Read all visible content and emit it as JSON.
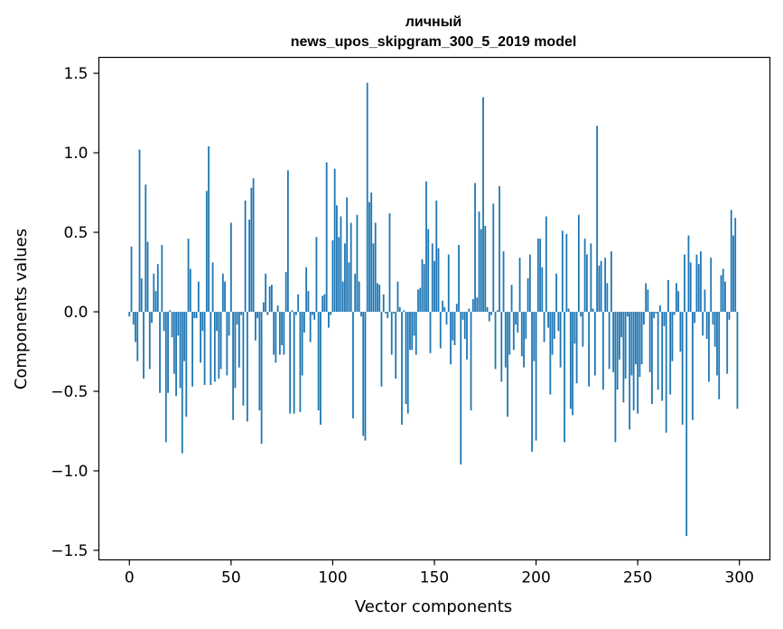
{
  "chart_data": {
    "type": "bar",
    "title_line1": "личный",
    "title_line2": "news_upos_skipgram_300_5_2019 model",
    "xlabel": "Vector components",
    "ylabel": "Components values",
    "xlim": [
      -15,
      315
    ],
    "ylim": [
      -1.56,
      1.6
    ],
    "xticks": [
      0,
      50,
      100,
      150,
      200,
      250,
      300
    ],
    "yticks": [
      -1.5,
      -1.0,
      -0.5,
      0.0,
      0.5,
      1.0,
      1.5
    ],
    "ytick_labels": [
      "−1.5",
      "−1.0",
      "−0.5",
      "0.0",
      "0.5",
      "1.0",
      "1.5"
    ],
    "bar_color": "#1f77b4",
    "values": [
      -0.03,
      0.41,
      -0.08,
      -0.19,
      -0.31,
      1.02,
      0.21,
      -0.42,
      0.8,
      0.44,
      -0.36,
      -0.07,
      0.24,
      0.13,
      0.3,
      -0.51,
      0.42,
      -0.12,
      -0.82,
      -0.51,
      0.01,
      -0.16,
      -0.39,
      -0.53,
      -0.15,
      -0.48,
      -0.89,
      -0.31,
      -0.66,
      0.46,
      0.27,
      -0.47,
      -0.04,
      -0.04,
      0.19,
      -0.32,
      -0.12,
      -0.46,
      0.76,
      1.04,
      -0.46,
      0.31,
      -0.44,
      -0.12,
      -0.42,
      -0.36,
      0.24,
      0.19,
      -0.4,
      -0.15,
      0.56,
      -0.68,
      -0.48,
      -0.08,
      -0.35,
      -0.02,
      -0.59,
      0.7,
      -0.69,
      0.58,
      0.78,
      0.84,
      -0.18,
      -0.04,
      -0.62,
      -0.83,
      0.06,
      0.24,
      -0.02,
      0.16,
      0.17,
      -0.27,
      -0.32,
      0.04,
      -0.27,
      -0.21,
      -0.27,
      0.25,
      0.89,
      -0.64,
      0.01,
      -0.64,
      -0.02,
      0.11,
      -0.63,
      -0.4,
      -0.13,
      0.28,
      0.13,
      -0.19,
      -0.02,
      -0.05,
      0.47,
      -0.62,
      -0.71,
      0.1,
      0.11,
      0.94,
      -0.1,
      -0.02,
      0.45,
      0.9,
      0.67,
      0.47,
      0.6,
      0.19,
      0.43,
      0.72,
      0.31,
      0.56,
      -0.67,
      0.24,
      0.61,
      0.19,
      -0.03,
      -0.78,
      -0.81,
      1.44,
      0.69,
      0.75,
      0.43,
      0.56,
      0.18,
      0.17,
      -0.47,
      0.11,
      -0.01,
      -0.04,
      0.62,
      -0.27,
      -0.01,
      -0.42,
      0.19,
      0.03,
      -0.71,
      0.01,
      -0.58,
      -0.64,
      -0.24,
      -0.24,
      -0.15,
      -0.27,
      0.14,
      0.15,
      0.33,
      0.3,
      0.82,
      0.52,
      -0.26,
      0.43,
      0.32,
      0.7,
      0.4,
      -0.23,
      0.07,
      0.03,
      -0.08,
      0.36,
      -0.33,
      -0.18,
      -0.21,
      0.05,
      0.42,
      -0.96,
      -0.05,
      -0.17,
      -0.3,
      0.02,
      -0.62,
      0.08,
      0.81,
      0.09,
      0.63,
      0.52,
      1.35,
      0.54,
      0.03,
      -0.06,
      -0.02,
      0.68,
      -0.36,
      0.01,
      0.79,
      -0.44,
      0.38,
      -0.35,
      -0.66,
      -0.27,
      0.17,
      -0.24,
      -0.08,
      -0.13,
      0.34,
      -0.28,
      -0.35,
      -0.17,
      0.21,
      0.36,
      -0.88,
      -0.31,
      -0.81,
      0.46,
      0.46,
      0.28,
      -0.19,
      0.6,
      -0.1,
      -0.52,
      -0.27,
      -0.17,
      0.24,
      -0.12,
      -0.35,
      0.51,
      -0.82,
      0.49,
      0.02,
      -0.61,
      -0.65,
      -0.2,
      -0.45,
      0.61,
      -0.03,
      -0.22,
      0.46,
      0.36,
      -0.47,
      0.43,
      0.02,
      -0.4,
      1.17,
      0.29,
      0.32,
      -0.49,
      0.34,
      0.18,
      -0.36,
      0.38,
      -0.38,
      -0.82,
      -0.49,
      -0.3,
      -0.16,
      -0.57,
      -0.42,
      -0.03,
      -0.74,
      -0.4,
      -0.62,
      -0.33,
      -0.64,
      -0.41,
      -0.33,
      -0.08,
      0.18,
      0.14,
      -0.38,
      -0.58,
      -0.04,
      -0.01,
      -0.49,
      0.04,
      -0.56,
      -0.09,
      -0.76,
      0.2,
      -0.52,
      -0.31,
      -0.02,
      0.18,
      0.13,
      -0.25,
      -0.71,
      0.36,
      -1.41,
      0.48,
      0.31,
      -0.68,
      -0.07,
      0.36,
      0.3,
      0.38,
      -0.15,
      0.14,
      -0.17,
      -0.44,
      0.34,
      -0.08,
      -0.22,
      -0.4,
      -0.55,
      0.23,
      0.27,
      0.19,
      -0.39,
      -0.05,
      0.64,
      0.48,
      0.59,
      -0.61
    ]
  }
}
